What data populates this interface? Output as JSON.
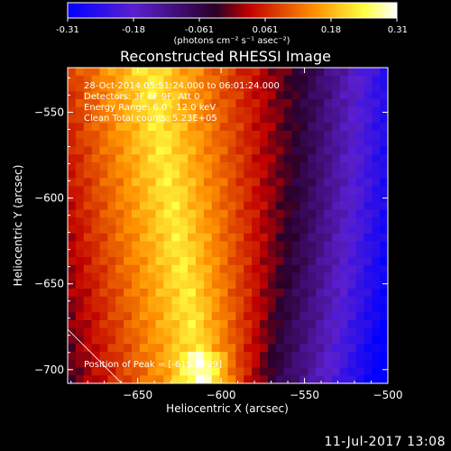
{
  "chart_data": {
    "type": "heatmap",
    "title": "Reconstructed RHESSI Image",
    "xlabel": "Heliocentric X (arcsec)",
    "ylabel": "Heliocentric Y (arcsec)",
    "xlim": [
      -692,
      -500
    ],
    "ylim": [
      -708,
      -524
    ],
    "x_ticks": [
      -650,
      -600,
      -550,
      -500
    ],
    "y_ticks": [
      -550,
      -600,
      -650,
      -700
    ],
    "colorbar": {
      "min": -0.31,
      "max": 0.31,
      "ticks": [
        "-0.31",
        "-0.18",
        "-0.061",
        "0.061",
        "0.18",
        "0.31"
      ],
      "unit_label": "(photons cm⁻² s⁻¹ asec⁻²)",
      "colors": [
        "#0000ff",
        "#5a1fd0",
        "#2a0028",
        "#c00000",
        "#ff9000",
        "#ffff40",
        "#ffffff"
      ]
    },
    "annotations": [
      "28-Oct-2014 05:51:24.000 to 06:01:24.000",
      "Detectors: 3F 6F 9F, Att 0",
      "Energy Range: 6.0 - 12.0 keV",
      "Clean    Total counts: 5.23E+05"
    ],
    "peak_label": "Position of Peak = [-615, -709]",
    "peak_value": 0.31
  },
  "footer": {
    "date": "11-Jul-2017 13:08"
  }
}
